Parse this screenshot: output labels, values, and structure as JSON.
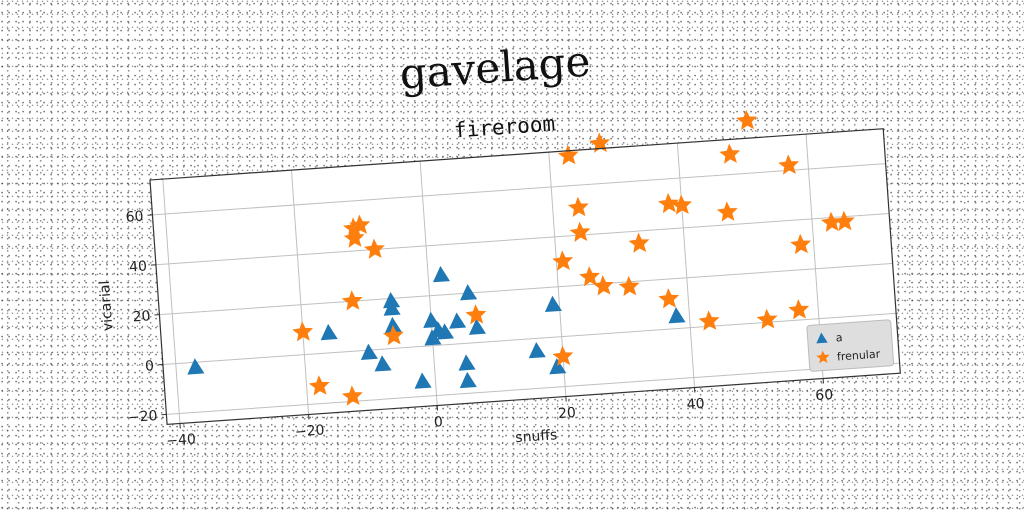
{
  "chart_data": {
    "type": "scatter",
    "suptitle": "gavelage",
    "title": "fireroom",
    "xlabel": "snuffs",
    "ylabel": "vicarial",
    "xlim": [
      -42,
      72
    ],
    "ylim": [
      -24,
      74
    ],
    "xticks": [
      -40,
      -20,
      0,
      20,
      40,
      60
    ],
    "yticks": [
      -20,
      0,
      20,
      40,
      60
    ],
    "grid": true,
    "legend_position": "lower-right",
    "series": [
      {
        "name": "a",
        "marker": "triangle",
        "color": "#1f77b4",
        "points": [
          [
            -37,
            -2
          ],
          [
            -16,
            8
          ],
          [
            -10,
            -1
          ],
          [
            -8,
            -6
          ],
          [
            -6,
            19
          ],
          [
            -6,
            16
          ],
          [
            -6,
            9
          ],
          [
            -2,
            -14
          ],
          [
            0,
            10
          ],
          [
            0,
            3
          ],
          [
            1,
            6
          ],
          [
            2,
            5
          ],
          [
            2,
            28
          ],
          [
            4,
            9
          ],
          [
            5,
            -8
          ],
          [
            5,
            -15
          ],
          [
            6,
            20
          ],
          [
            7,
            6
          ],
          [
            16,
            -5
          ],
          [
            19,
            -12
          ],
          [
            19,
            13
          ],
          [
            38,
            5
          ]
        ]
      },
      {
        "name": "frenular",
        "marker": "star",
        "color": "#ff7f0e",
        "points": [
          [
            -20,
            9
          ],
          [
            -18,
            -13
          ],
          [
            -13,
            -18
          ],
          [
            -12,
            20
          ],
          [
            -11,
            49
          ],
          [
            -11,
            45
          ],
          [
            -10,
            50
          ],
          [
            -8,
            40
          ],
          [
            -6,
            5
          ],
          [
            7,
            11
          ],
          [
            20,
            -8
          ],
          [
            21,
            30
          ],
          [
            23,
            72
          ],
          [
            24,
            51
          ],
          [
            24,
            41
          ],
          [
            25,
            23
          ],
          [
            27,
            19
          ],
          [
            28,
            76
          ],
          [
            31,
            18
          ],
          [
            33,
            35
          ],
          [
            37,
            12
          ],
          [
            38,
            50
          ],
          [
            40,
            49
          ],
          [
            43,
            2
          ],
          [
            47,
            45
          ],
          [
            48,
            68
          ],
          [
            51,
            81
          ],
          [
            52,
            1
          ],
          [
            57,
            4
          ],
          [
            57,
            62
          ],
          [
            58,
            30
          ],
          [
            63,
            38
          ],
          [
            65,
            38
          ]
        ]
      }
    ]
  },
  "colors": {
    "axes_frame": "#333333",
    "grid": "#c0c0c0",
    "legend_bg": "#dedede"
  }
}
